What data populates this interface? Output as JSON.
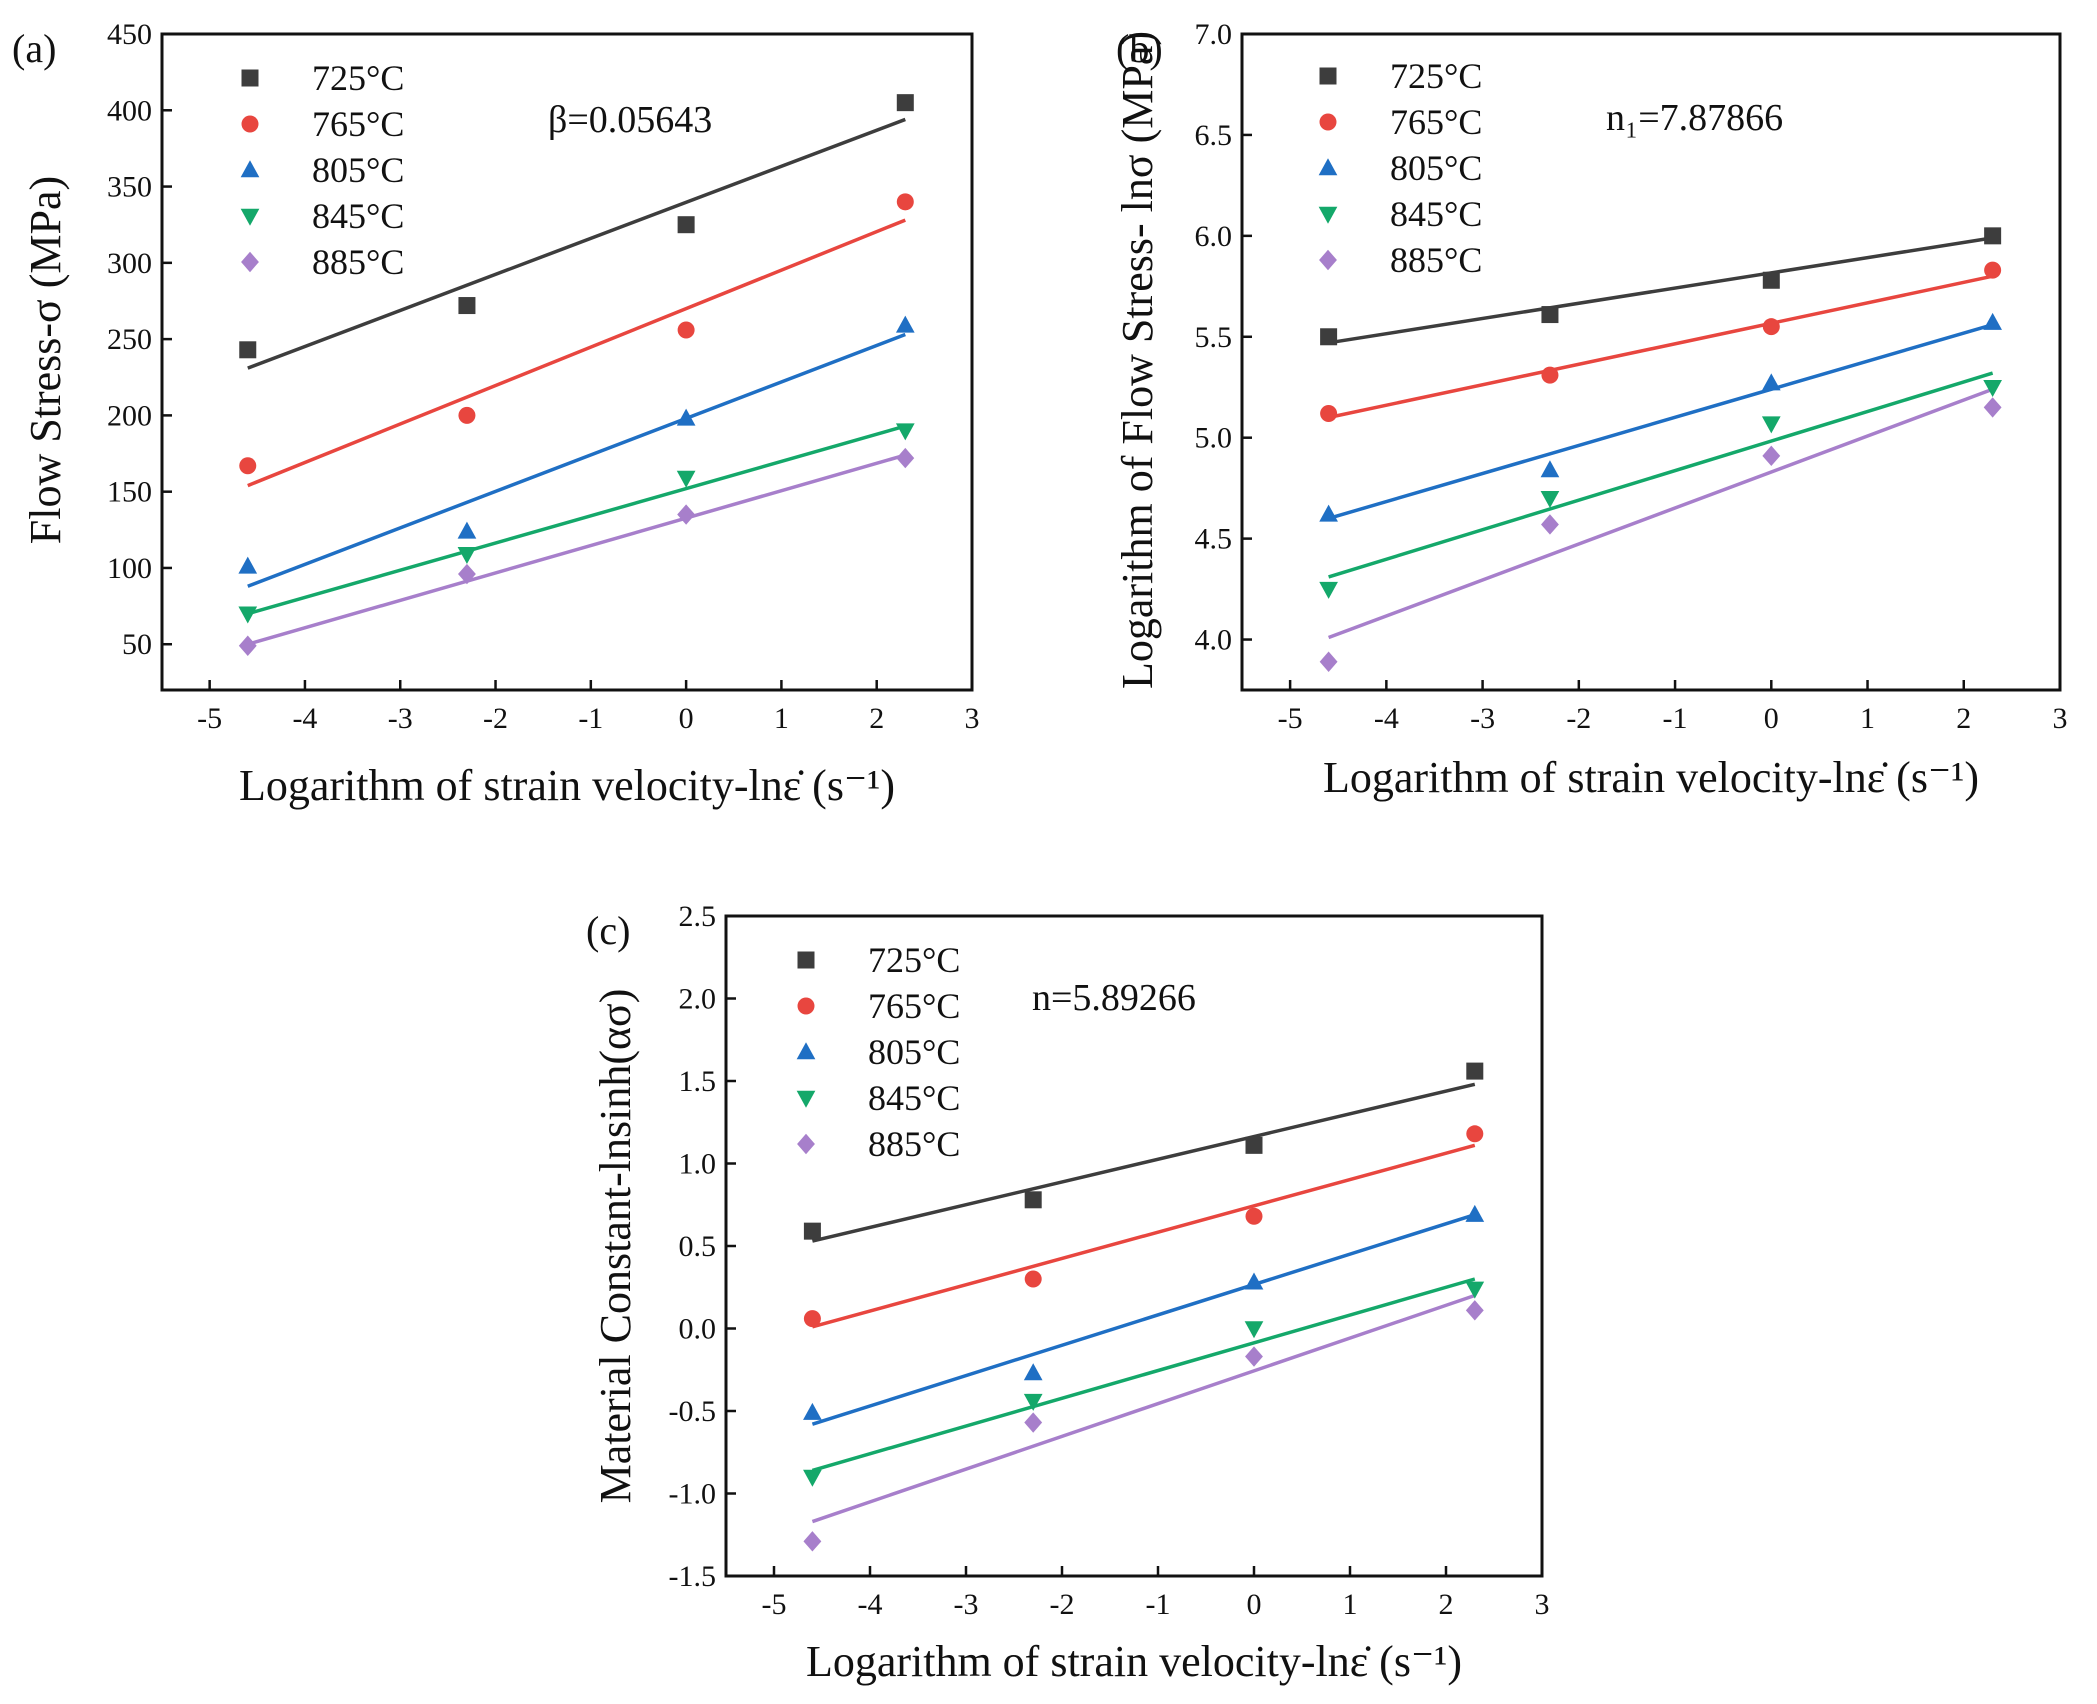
{
  "figure": {
    "series_names": [
      "725°C",
      "765°C",
      "805°C",
      "845°C",
      "885°C"
    ],
    "colors": {
      "725°C": "#3d3d3d",
      "765°C": "#e8463f",
      "805°C": "#1f6fc4",
      "845°C": "#14a86a",
      "885°C": "#a77fcb"
    },
    "markers": {
      "725°C": "square",
      "765°C": "circle",
      "805°C": "triangle-up",
      "845°C": "triangle-down",
      "885°C": "diamond"
    }
  },
  "chart_data": [
    {
      "panel": "(a)",
      "type": "scatter",
      "xlabel": "Logarithm of strain velocity-lnε̇ (s⁻¹)",
      "ylabel": "Flow Stress-σ (MPa)",
      "annotation": "β=0.05643",
      "xlim": [
        -5.5,
        3
      ],
      "ylim": [
        20,
        450
      ],
      "xticks": [
        -5,
        -4,
        -3,
        -2,
        -1,
        0,
        1,
        2,
        3
      ],
      "yticks": [
        50,
        100,
        150,
        200,
        250,
        300,
        350,
        400,
        450
      ],
      "x": [
        -4.6,
        -2.3,
        0,
        2.3
      ],
      "series": [
        {
          "name": "725°C",
          "values": [
            243,
            272,
            325,
            405
          ],
          "fit": [
            231,
            394
          ]
        },
        {
          "name": "765°C",
          "values": [
            167,
            200,
            256,
            340
          ],
          "fit": [
            154,
            328
          ]
        },
        {
          "name": "805°C",
          "values": [
            101,
            124,
            198,
            259
          ],
          "fit": [
            88,
            253
          ]
        },
        {
          "name": "845°C",
          "values": [
            70,
            109,
            159,
            190
          ],
          "fit": [
            70,
            193
          ]
        },
        {
          "name": "885°C",
          "values": [
            49,
            96,
            135,
            172
          ],
          "fit": [
            50,
            174
          ]
        }
      ]
    },
    {
      "panel": "(b)",
      "type": "scatter",
      "xlabel": "Logarithm of strain velocity-lnε̇ (s⁻¹)",
      "ylabel": "Logarithm of Flow Stress- lnσ (MPa)",
      "annotation": "n₁=7.87866",
      "xlim": [
        -5.5,
        3
      ],
      "ylim": [
        3.75,
        7.0
      ],
      "xticks": [
        -5,
        -4,
        -3,
        -2,
        -1,
        0,
        1,
        2,
        3
      ],
      "yticks": [
        4.0,
        4.5,
        5.0,
        5.5,
        6.0,
        6.5,
        7.0
      ],
      "x": [
        -4.6,
        -2.3,
        0,
        2.3
      ],
      "series": [
        {
          "name": "725°C",
          "values": [
            5.5,
            5.61,
            5.78,
            6.0
          ],
          "fit": [
            5.47,
            5.99
          ]
        },
        {
          "name": "765°C",
          "values": [
            5.12,
            5.31,
            5.55,
            5.83
          ],
          "fit": [
            5.1,
            5.8
          ]
        },
        {
          "name": "805°C",
          "values": [
            4.62,
            4.84,
            5.27,
            5.57
          ],
          "fit": [
            4.6,
            5.56
          ]
        },
        {
          "name": "845°C",
          "values": [
            4.25,
            4.7,
            5.07,
            5.25
          ],
          "fit": [
            4.31,
            5.32
          ]
        },
        {
          "name": "885°C",
          "values": [
            3.89,
            4.57,
            4.91,
            5.15
          ],
          "fit": [
            4.01,
            5.24
          ]
        }
      ]
    },
    {
      "panel": "(c)",
      "type": "scatter",
      "xlabel": "Logarithm of strain velocity-lnε̇ (s⁻¹)",
      "ylabel": "Material Constant-lnsinh(ασ)",
      "annotation": "n=5.89266",
      "xlim": [
        -5.5,
        3
      ],
      "ylim": [
        -1.5,
        2.5
      ],
      "xticks": [
        -5,
        -4,
        -3,
        -2,
        -1,
        0,
        1,
        2,
        3
      ],
      "yticks": [
        -1.5,
        -1.0,
        -0.5,
        0.0,
        0.5,
        1.0,
        1.5,
        2.0,
        2.5
      ],
      "x": [
        -4.6,
        -2.3,
        0,
        2.3
      ],
      "series": [
        {
          "name": "725°C",
          "values": [
            0.59,
            0.78,
            1.11,
            1.56
          ],
          "fit": [
            0.53,
            1.48
          ]
        },
        {
          "name": "765°C",
          "values": [
            0.06,
            0.3,
            0.68,
            1.18
          ],
          "fit": [
            0.01,
            1.11
          ]
        },
        {
          "name": "805°C",
          "values": [
            -0.51,
            -0.27,
            0.28,
            0.69
          ],
          "fit": [
            -0.58,
            0.69
          ]
        },
        {
          "name": "845°C",
          "values": [
            -0.9,
            -0.44,
            0.0,
            0.24
          ],
          "fit": [
            -0.86,
            0.3
          ]
        },
        {
          "name": "885°C",
          "values": [
            -1.29,
            -0.57,
            -0.17,
            0.11
          ],
          "fit": [
            -1.17,
            0.2
          ]
        }
      ]
    }
  ]
}
